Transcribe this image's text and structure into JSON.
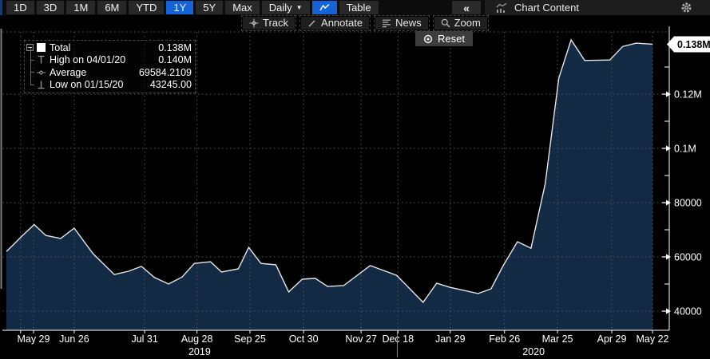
{
  "toolbar": {
    "ranges": [
      "1D",
      "3D",
      "1M",
      "6M",
      "YTD",
      "1Y",
      "5Y",
      "Max"
    ],
    "selected_range": "1Y",
    "period_selector": "Daily",
    "table_label": "Table",
    "collapse_label": "«",
    "chart_content_label": "Chart Content"
  },
  "tools": [
    {
      "id": "track",
      "label": "Track"
    },
    {
      "id": "annotate",
      "label": "Annotate"
    },
    {
      "id": "news",
      "label": "News"
    },
    {
      "id": "zoom",
      "label": "Zoom"
    }
  ],
  "reset_label": "Reset",
  "legend": {
    "rows": [
      {
        "label": "Total",
        "value": "0.138M"
      },
      {
        "label": "High on 04/01/20",
        "value": "0.140M"
      },
      {
        "label": "Average",
        "value": "69584.2109"
      },
      {
        "label": "Low on 01/15/20",
        "value": "43245.00"
      }
    ]
  },
  "chart_data": {
    "type": "area",
    "title": "Chart Content",
    "series": [
      {
        "name": "Total",
        "points": [
          [
            0.0,
            62000
          ],
          [
            0.013,
            65000
          ],
          [
            0.023,
            67400
          ],
          [
            0.043,
            71900
          ],
          [
            0.061,
            67900
          ],
          [
            0.084,
            66800
          ],
          [
            0.105,
            70600
          ],
          [
            0.134,
            61200
          ],
          [
            0.167,
            53500
          ],
          [
            0.189,
            54700
          ],
          [
            0.209,
            56500
          ],
          [
            0.229,
            52400
          ],
          [
            0.251,
            50000
          ],
          [
            0.272,
            52600
          ],
          [
            0.291,
            57600
          ],
          [
            0.316,
            58200
          ],
          [
            0.333,
            54400
          ],
          [
            0.359,
            55600
          ],
          [
            0.375,
            63500
          ],
          [
            0.394,
            57600
          ],
          [
            0.417,
            57100
          ],
          [
            0.437,
            47100
          ],
          [
            0.458,
            51800
          ],
          [
            0.478,
            52100
          ],
          [
            0.497,
            49100
          ],
          [
            0.522,
            49400
          ],
          [
            0.563,
            56800
          ],
          [
            0.604,
            53200
          ],
          [
            0.645,
            43245
          ],
          [
            0.666,
            50300
          ],
          [
            0.686,
            48800
          ],
          [
            0.73,
            46500
          ],
          [
            0.75,
            48200
          ],
          [
            0.769,
            56800
          ],
          [
            0.791,
            65600
          ],
          [
            0.812,
            63200
          ],
          [
            0.834,
            87000
          ],
          [
            0.855,
            125900
          ],
          [
            0.874,
            140000
          ],
          [
            0.895,
            132400
          ],
          [
            0.934,
            132600
          ],
          [
            0.954,
            137600
          ],
          [
            0.975,
            138800
          ],
          [
            1.0,
            138400
          ]
        ]
      }
    ],
    "stats": {
      "last": 138000,
      "high": 140000,
      "high_date": "04/01/20",
      "average": 69584.2109,
      "low": 43245.0,
      "low_date": "01/15/20"
    },
    "x_ticks": [
      {
        "label": "May 29",
        "f": 0.042
      },
      {
        "label": "Jun 26",
        "f": 0.105
      },
      {
        "label": "Jul 31",
        "f": 0.214
      },
      {
        "label": "Aug 28",
        "f": 0.295
      },
      {
        "label": "Sep 25",
        "f": 0.377
      },
      {
        "label": "Oct 30",
        "f": 0.46
      },
      {
        "label": "Nov 27",
        "f": 0.549
      },
      {
        "label": "Dec 18",
        "f": 0.606
      },
      {
        "label": "Jan 29",
        "f": 0.687
      },
      {
        "label": "Feb 26",
        "f": 0.771
      },
      {
        "label": "Mar 25",
        "f": 0.853
      },
      {
        "label": "Apr 29",
        "f": 0.937
      },
      {
        "label": "May 22",
        "f": 1.0
      }
    ],
    "extra_grid_f": [
      0.022
    ],
    "year_labels": [
      {
        "label": "2019",
        "f": 0.299
      },
      {
        "label": "2020",
        "f": 0.816
      }
    ],
    "year_separator_f": 0.605,
    "y_ticks": [
      {
        "label": "40000",
        "v": 40000
      },
      {
        "label": "60000",
        "v": 60000
      },
      {
        "label": "80000",
        "v": 80000
      },
      {
        "label": "0.1M",
        "v": 100000
      },
      {
        "label": "0.12M",
        "v": 120000
      }
    ],
    "y_minor": [
      50000,
      70000,
      90000,
      110000,
      130000
    ],
    "ylim": [
      32900,
      142700
    ],
    "grid": true,
    "legend_position": "top-left",
    "last_value_tag": "0.138M",
    "colors": {
      "area_fill": "#132a45",
      "line": "#e6e6e4",
      "grid": "#565656",
      "axis": "#ffffff",
      "tag_bg": "#ffffff",
      "tag_text": "#000000",
      "accent_blue": "#1463d8"
    }
  }
}
